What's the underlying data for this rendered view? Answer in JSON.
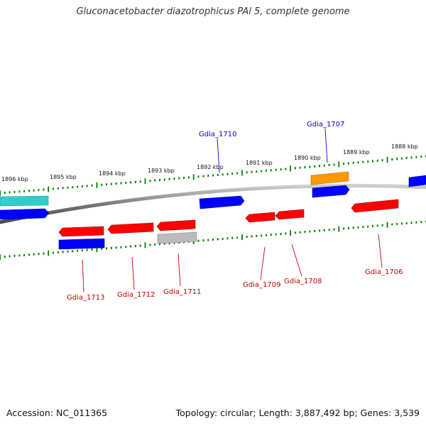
{
  "title": "Gluconacetobacter diazotrophicus PAl 5, complete genome",
  "footer": {
    "accession": "Accession: NC_011365",
    "stats": "Topology: circular; Length: 3,887,492 bp; Genes: 3,539"
  },
  "colors": {
    "forward_gene": "#ff0000",
    "reverse_gene": "#0000ff",
    "teal_gene": "#33cccc",
    "orange_gene": "#ff9900",
    "gray_gene": "#bbbbbb",
    "backbone": "#777777",
    "ticks": "#008000",
    "forward_label": "#cc0000",
    "reverse_label": "#0000cc"
  },
  "scale_labels": [
    "1896 kbp",
    "1895 kbp",
    "1894 kbp",
    "1893 kbp",
    "1892 kbp",
    "1891 kbp",
    "1890 kbp",
    "1889 kbp",
    "1888 kbp"
  ],
  "gene_labels": [
    {
      "text": "Gdia_1710",
      "strand": "reverse"
    },
    {
      "text": "Gdia_1707",
      "strand": "reverse"
    },
    {
      "text": "Gdia_1713",
      "strand": "forward"
    },
    {
      "text": "Gdia_1712",
      "strand": "forward"
    },
    {
      "text": "Gdia_1711",
      "strand": "forward"
    },
    {
      "text": "Gdia_1709",
      "strand": "forward"
    },
    {
      "text": "Gdia_1708",
      "strand": "forward"
    },
    {
      "text": "Gdia_1706",
      "strand": "forward"
    }
  ]
}
